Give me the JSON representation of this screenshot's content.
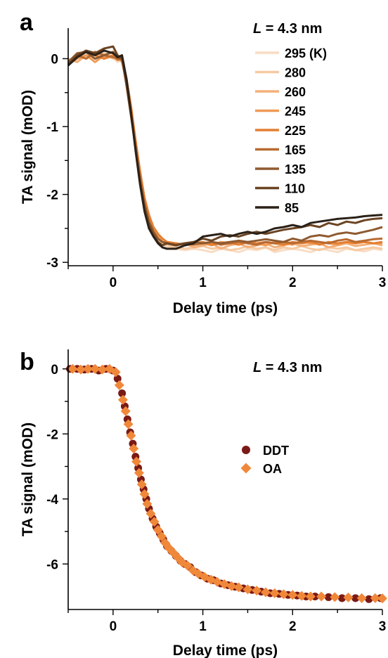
{
  "chart_data": [
    {
      "panel_label": "a",
      "type": "line",
      "xlabel": "Delay time (ps)",
      "ylabel": "TA signal (mOD)",
      "xlim": [
        -0.5,
        3
      ],
      "ylim": [
        -3.05,
        0.45
      ],
      "xticks": [
        0,
        1,
        2,
        3
      ],
      "xtick_labels": [
        "0",
        "1",
        "2",
        "3"
      ],
      "yticks": [
        0,
        -1,
        -2,
        -3
      ],
      "ytick_labels": [
        "0",
        "-1",
        "-2",
        "-3"
      ],
      "annotation_prefix": "L",
      "annotation_suffix": " = 4.3 nm",
      "legend_position": "top-right",
      "x": [
        -0.5,
        -0.4,
        -0.3,
        -0.2,
        -0.1,
        0.0,
        0.05,
        0.1,
        0.15,
        0.2,
        0.25,
        0.3,
        0.35,
        0.4,
        0.45,
        0.5,
        0.55,
        0.6,
        0.7,
        0.8,
        0.9,
        1.0,
        1.1,
        1.2,
        1.3,
        1.4,
        1.5,
        1.6,
        1.7,
        1.8,
        1.9,
        2.0,
        2.1,
        2.2,
        2.3,
        2.4,
        2.5,
        2.6,
        2.7,
        2.8,
        2.9,
        3.0
      ],
      "series": [
        {
          "name": "295 (K)",
          "color": "#f8dcc4",
          "values": [
            -0.05,
            0.05,
            0.0,
            0.05,
            0.0,
            0.02,
            -0.05,
            0.0,
            -0.3,
            -0.7,
            -1.2,
            -1.7,
            -2.1,
            -2.4,
            -2.6,
            -2.7,
            -2.72,
            -2.78,
            -2.8,
            -2.82,
            -2.8,
            -2.82,
            -2.85,
            -2.8,
            -2.82,
            -2.85,
            -2.8,
            -2.82,
            -2.78,
            -2.85,
            -2.82,
            -2.8,
            -2.82,
            -2.85,
            -2.8,
            -2.82,
            -2.85,
            -2.8,
            -2.82,
            -2.84,
            -2.8,
            -2.82
          ]
        },
        {
          "name": "280",
          "color": "#f6caa3",
          "values": [
            -0.02,
            0.02,
            0.05,
            0.0,
            0.08,
            0.0,
            -0.02,
            0.02,
            -0.3,
            -0.72,
            -1.2,
            -1.7,
            -2.1,
            -2.4,
            -2.55,
            -2.65,
            -2.7,
            -2.75,
            -2.78,
            -2.8,
            -2.78,
            -2.76,
            -2.8,
            -2.78,
            -2.82,
            -2.8,
            -2.76,
            -2.8,
            -2.78,
            -2.82,
            -2.78,
            -2.8,
            -2.76,
            -2.8,
            -2.82,
            -2.78,
            -2.8,
            -2.78,
            -2.82,
            -2.8,
            -2.78,
            -2.8
          ]
        },
        {
          "name": "260",
          "color": "#f3b07a",
          "values": [
            0.0,
            -0.05,
            0.05,
            0.1,
            0.02,
            0.05,
            0.0,
            -0.05,
            -0.35,
            -0.75,
            -1.25,
            -1.7,
            -2.1,
            -2.35,
            -2.5,
            -2.6,
            -2.7,
            -2.72,
            -2.75,
            -2.72,
            -2.78,
            -2.75,
            -2.72,
            -2.8,
            -2.75,
            -2.72,
            -2.78,
            -2.75,
            -2.72,
            -2.78,
            -2.75,
            -2.72,
            -2.76,
            -2.74,
            -2.72,
            -2.78,
            -2.75,
            -2.72,
            -2.76,
            -2.74,
            -2.72,
            -2.75
          ]
        },
        {
          "name": "245",
          "color": "#f09a55",
          "values": [
            -0.08,
            0.0,
            0.05,
            -0.05,
            0.05,
            0.1,
            0.02,
            0.0,
            -0.3,
            -0.7,
            -1.2,
            -1.7,
            -2.05,
            -2.3,
            -2.5,
            -2.6,
            -2.65,
            -2.7,
            -2.72,
            -2.75,
            -2.7,
            -2.72,
            -2.75,
            -2.7,
            -2.72,
            -2.74,
            -2.7,
            -2.72,
            -2.75,
            -2.7,
            -2.72,
            -2.74,
            -2.68,
            -2.72,
            -2.7,
            -2.72,
            -2.74,
            -2.7,
            -2.72,
            -2.7,
            -2.72,
            -2.72
          ]
        },
        {
          "name": "225",
          "color": "#e47f32",
          "values": [
            -0.05,
            0.05,
            0.1,
            0.05,
            0.0,
            0.05,
            -0.02,
            0.02,
            -0.3,
            -0.7,
            -1.2,
            -1.65,
            -2.05,
            -2.3,
            -2.48,
            -2.58,
            -2.65,
            -2.7,
            -2.72,
            -2.74,
            -2.72,
            -2.7,
            -2.74,
            -2.72,
            -2.7,
            -2.74,
            -2.7,
            -2.72,
            -2.7,
            -2.72,
            -2.74,
            -2.7,
            -2.72,
            -2.7,
            -2.74,
            -2.7,
            -2.72,
            -2.7,
            -2.72,
            -2.7,
            -2.72,
            -2.7
          ]
        },
        {
          "name": "165",
          "color": "#b86a30",
          "values": [
            -0.1,
            0.05,
            0.0,
            0.1,
            0.05,
            0.02,
            0.0,
            -0.02,
            -0.35,
            -0.8,
            -1.3,
            -1.75,
            -2.15,
            -2.4,
            -2.55,
            -2.65,
            -2.7,
            -2.72,
            -2.75,
            -2.72,
            -2.74,
            -2.72,
            -2.7,
            -2.74,
            -2.72,
            -2.7,
            -2.72,
            -2.74,
            -2.7,
            -2.72,
            -2.7,
            -2.72,
            -2.7,
            -2.68,
            -2.7,
            -2.72,
            -2.68,
            -2.66,
            -2.7,
            -2.68,
            -2.66,
            -2.65
          ]
        },
        {
          "name": "135",
          "color": "#8f5a2f",
          "values": [
            -0.05,
            0.08,
            0.1,
            0.0,
            0.05,
            0.1,
            0.02,
            0.0,
            -0.4,
            -0.85,
            -1.3,
            -1.8,
            -2.15,
            -2.4,
            -2.55,
            -2.65,
            -2.7,
            -2.72,
            -2.74,
            -2.72,
            -2.7,
            -2.72,
            -2.7,
            -2.72,
            -2.7,
            -2.68,
            -2.7,
            -2.68,
            -2.66,
            -2.68,
            -2.7,
            -2.65,
            -2.68,
            -2.62,
            -2.6,
            -2.62,
            -2.58,
            -2.56,
            -2.58,
            -2.55,
            -2.52,
            -2.48
          ]
        },
        {
          "name": "110",
          "color": "#6b4423",
          "values": [
            -0.08,
            0.05,
            0.12,
            0.08,
            0.15,
            0.18,
            0.05,
            0.0,
            -0.35,
            -0.8,
            -1.3,
            -1.8,
            -2.2,
            -2.45,
            -2.6,
            -2.7,
            -2.75,
            -2.72,
            -2.75,
            -2.72,
            -2.7,
            -2.65,
            -2.68,
            -2.62,
            -2.6,
            -2.62,
            -2.58,
            -2.55,
            -2.58,
            -2.55,
            -2.52,
            -2.5,
            -2.48,
            -2.45,
            -2.48,
            -2.42,
            -2.45,
            -2.4,
            -2.42,
            -2.38,
            -2.36,
            -2.35
          ]
        },
        {
          "name": "85",
          "color": "#2b2118",
          "values": [
            -0.1,
            0.02,
            0.1,
            0.05,
            0.12,
            0.08,
            0.02,
            0.05,
            -0.3,
            -0.8,
            -1.35,
            -1.85,
            -2.25,
            -2.5,
            -2.62,
            -2.72,
            -2.78,
            -2.8,
            -2.8,
            -2.75,
            -2.72,
            -2.62,
            -2.6,
            -2.58,
            -2.62,
            -2.58,
            -2.55,
            -2.58,
            -2.55,
            -2.5,
            -2.48,
            -2.45,
            -2.48,
            -2.42,
            -2.4,
            -2.38,
            -2.36,
            -2.35,
            -2.34,
            -2.32,
            -2.31,
            -2.3
          ]
        }
      ]
    },
    {
      "panel_label": "b",
      "type": "scatter",
      "xlabel": "Delay time (ps)",
      "ylabel": "TA signal (mOD)",
      "xlim": [
        -0.5,
        3
      ],
      "ylim": [
        -7.4,
        0.6
      ],
      "xticks": [
        0,
        1,
        2,
        3
      ],
      "xtick_labels": [
        "0",
        "1",
        "2",
        "3"
      ],
      "yticks": [
        0,
        -2,
        -4,
        -6
      ],
      "ytick_labels": [
        "0",
        "-2",
        "-4",
        "-6"
      ],
      "annotation_prefix": "L",
      "annotation_suffix": " = 4.3 nm",
      "legend_position": "center-right",
      "series": [
        {
          "name": "DDT",
          "color": "#7a1a16",
          "marker": "circle",
          "x": [
            -0.48,
            -0.4,
            -0.32,
            -0.24,
            -0.16,
            -0.08,
            0.0,
            0.05,
            0.1,
            0.13,
            0.16,
            0.19,
            0.22,
            0.25,
            0.28,
            0.31,
            0.34,
            0.37,
            0.4,
            0.44,
            0.48,
            0.52,
            0.56,
            0.6,
            0.65,
            0.7,
            0.75,
            0.8,
            0.86,
            0.92,
            0.98,
            1.05,
            1.12,
            1.2,
            1.28,
            1.36,
            1.45,
            1.55,
            1.65,
            1.75,
            1.85,
            1.95,
            2.05,
            2.15,
            2.25,
            2.4,
            2.55,
            2.7,
            2.85,
            2.98
          ],
          "y": [
            0.0,
            0.0,
            -0.02,
            0.0,
            -0.05,
            0.0,
            -0.05,
            -0.3,
            -0.75,
            -1.15,
            -1.55,
            -1.95,
            -2.3,
            -2.7,
            -3.05,
            -3.4,
            -3.7,
            -4.0,
            -4.3,
            -4.6,
            -4.85,
            -5.05,
            -5.25,
            -5.45,
            -5.6,
            -5.75,
            -5.9,
            -6.0,
            -6.1,
            -6.25,
            -6.35,
            -6.45,
            -6.5,
            -6.6,
            -6.65,
            -6.7,
            -6.75,
            -6.8,
            -6.85,
            -6.9,
            -6.92,
            -6.95,
            -6.97,
            -7.0,
            -7.0,
            -7.02,
            -7.05,
            -7.05,
            -7.08,
            -7.05
          ]
        },
        {
          "name": "OA",
          "color": "#f0883a",
          "marker": "diamond",
          "x": [
            -0.45,
            -0.36,
            -0.28,
            -0.2,
            -0.12,
            -0.04,
            0.03,
            0.07,
            0.11,
            0.14,
            0.17,
            0.2,
            0.23,
            0.26,
            0.29,
            0.32,
            0.35,
            0.38,
            0.42,
            0.46,
            0.5,
            0.54,
            0.58,
            0.62,
            0.67,
            0.72,
            0.77,
            0.83,
            0.89,
            0.95,
            1.02,
            1.09,
            1.16,
            1.24,
            1.32,
            1.4,
            1.5,
            1.6,
            1.7,
            1.8,
            1.9,
            2.0,
            2.1,
            2.2,
            2.32,
            2.47,
            2.62,
            2.77,
            2.92,
            3.0
          ],
          "y": [
            0.0,
            -0.02,
            0.0,
            0.0,
            -0.02,
            0.0,
            -0.1,
            -0.5,
            -0.95,
            -1.3,
            -1.7,
            -2.05,
            -2.45,
            -2.85,
            -3.2,
            -3.55,
            -3.85,
            -4.15,
            -4.45,
            -4.7,
            -4.95,
            -5.15,
            -5.35,
            -5.5,
            -5.65,
            -5.8,
            -5.95,
            -6.05,
            -6.2,
            -6.3,
            -6.4,
            -6.48,
            -6.55,
            -6.62,
            -6.68,
            -6.72,
            -6.78,
            -6.82,
            -6.87,
            -6.9,
            -6.93,
            -6.95,
            -6.98,
            -7.0,
            -7.0,
            -7.02,
            -7.03,
            -7.05,
            -7.05,
            -7.06
          ]
        }
      ]
    }
  ]
}
